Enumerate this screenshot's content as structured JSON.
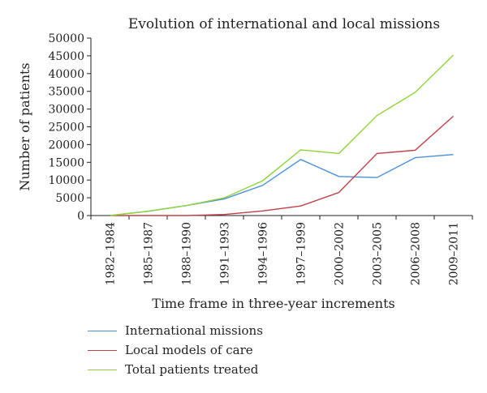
{
  "chart_data": {
    "type": "line",
    "title": "Evolution of international and local missions",
    "xlabel": "Time frame in three-year increments",
    "ylabel": "Number of patients",
    "categories": [
      "1982–1984",
      "1985–1987",
      "1988–1990",
      "1991–1993",
      "1994–1996",
      "1997–1999",
      "2000–2002",
      "2003–2005",
      "2006–2008",
      "2009–2011"
    ],
    "ylim": [
      0,
      50000
    ],
    "yticks": [
      0,
      5000,
      10000,
      15000,
      20000,
      25000,
      30000,
      35000,
      40000,
      45000,
      50000
    ],
    "grid": false,
    "legend_position": "bottom",
    "series": [
      {
        "name": "International missions",
        "color": "#4a90d9",
        "values": [
          0,
          1200,
          2800,
          4700,
          8500,
          15800,
          11000,
          10700,
          16300,
          17200
        ]
      },
      {
        "name": "Local models of care",
        "color": "#c0404a",
        "values": [
          0,
          0,
          0,
          300,
          1300,
          2700,
          6500,
          17500,
          18400,
          28000
        ]
      },
      {
        "name": "Total patients treated",
        "color": "#8ed43a",
        "values": [
          0,
          1200,
          2800,
          5000,
          9800,
          18500,
          17500,
          28200,
          34700,
          45200
        ]
      }
    ]
  }
}
